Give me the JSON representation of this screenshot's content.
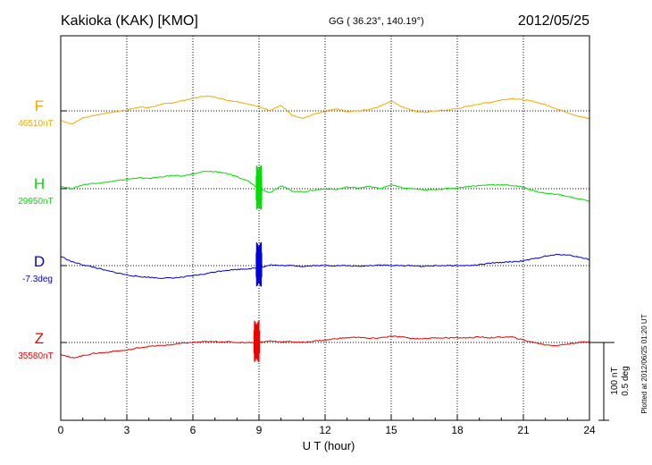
{
  "header": {
    "station": "Kakioka (KAK)  [KMO]",
    "coords": "GG ( 36.23°, 140.19°)",
    "date": "2012/05/25"
  },
  "chart_data": {
    "type": "line",
    "xlabel": "U T (hour)",
    "xlim": [
      0,
      24
    ],
    "xticks": [
      "0",
      "3",
      "6",
      "9",
      "12",
      "15",
      "18",
      "21",
      "24"
    ],
    "grid": true,
    "scale_bar": {
      "nt_label": "100 nT",
      "deg_label": "0.5 deg",
      "nt_value": 100,
      "deg_value": 0.5
    },
    "plotted_note": "Plotted at 2012/06/25 01:20 UT",
    "colors": {
      "F": "#f5a800",
      "H": "#00dd00",
      "D": "#0000dd",
      "Z": "#ee0000"
    },
    "series": [
      {
        "name": "F",
        "baseline_label": "46510nT",
        "unit": "nT",
        "x": [
          0,
          0.5,
          1,
          1.5,
          2,
          2.5,
          3,
          3.5,
          4,
          4.5,
          5,
          5.5,
          6,
          6.5,
          7,
          7.5,
          8,
          8.5,
          9,
          9.5,
          10,
          10.5,
          11,
          11.5,
          12,
          12.5,
          13,
          13.5,
          14,
          14.5,
          15,
          15.5,
          16,
          16.5,
          17,
          17.5,
          18,
          18.5,
          19,
          19.5,
          20,
          20.5,
          21,
          21.5,
          22,
          22.5,
          23,
          23.5,
          24
        ],
        "values": [
          -12,
          -17,
          -9,
          -6,
          -3,
          -1,
          1,
          5,
          4,
          8,
          10,
          13,
          16,
          19,
          18,
          14,
          12,
          9,
          5,
          1,
          7,
          -6,
          -10,
          -4,
          -1,
          3,
          -1,
          0,
          2,
          6,
          13,
          5,
          0,
          -2,
          0,
          1,
          3,
          6,
          9,
          11,
          14,
          16,
          14,
          12,
          8,
          3,
          -2,
          -7,
          -10
        ]
      },
      {
        "name": "H",
        "baseline_label": "29950nT",
        "unit": "nT",
        "x": [
          0,
          0.5,
          1,
          1.5,
          2,
          2.5,
          3,
          3.5,
          4,
          4.5,
          5,
          5.5,
          6,
          6.5,
          7,
          7.5,
          8,
          8.5,
          9,
          9.5,
          10,
          10.5,
          11,
          11.5,
          12,
          12.5,
          13,
          13.5,
          14,
          14.5,
          15,
          15.5,
          16,
          16.5,
          17,
          17.5,
          18,
          18.5,
          19,
          19.5,
          20,
          20.5,
          21,
          21.5,
          22,
          22.5,
          23,
          23.5,
          24
        ],
        "values": [
          3,
          0,
          5,
          7,
          8,
          10,
          12,
          14,
          13,
          15,
          17,
          16,
          19,
          22,
          22,
          20,
          15,
          10,
          0,
          -5,
          4,
          -3,
          -4,
          -2,
          0,
          -1,
          2,
          1,
          3,
          0,
          5,
          1,
          0,
          -2,
          -1,
          0,
          1,
          3,
          4,
          5,
          5,
          4,
          2,
          -3,
          -6,
          -7,
          -10,
          -13,
          -16
        ],
        "disturbance": {
          "x": 9.0,
          "amplitude": 30
        }
      },
      {
        "name": "D",
        "baseline_label": "-7.3deg",
        "unit": "deg",
        "x": [
          0,
          0.5,
          1,
          1.5,
          2,
          2.5,
          3,
          3.5,
          4,
          4.5,
          5,
          5.5,
          6,
          6.5,
          7,
          7.5,
          8,
          8.5,
          9,
          9.5,
          10,
          10.5,
          11,
          11.5,
          12,
          12.5,
          13,
          13.5,
          14,
          14.5,
          15,
          15.5,
          16,
          16.5,
          17,
          17.5,
          18,
          18.5,
          19,
          19.5,
          20,
          20.5,
          21,
          21.5,
          22,
          22.5,
          23,
          23.5,
          24
        ],
        "values": [
          12,
          5,
          1,
          -2,
          -6,
          -9,
          -12,
          -14,
          -15,
          -16,
          -16,
          -15,
          -13,
          -11,
          -8,
          -6,
          -5,
          -4,
          -3,
          1,
          0,
          0,
          -1,
          0,
          0,
          0,
          0,
          -1,
          0,
          1,
          0,
          0,
          0,
          -1,
          0,
          0,
          0,
          0,
          1,
          3,
          4,
          5,
          6,
          9,
          12,
          14,
          14,
          11,
          8
        ],
        "disturbance": {
          "x": 9.0,
          "amplitude": 30
        }
      },
      {
        "name": "Z",
        "baseline_label": "35580nT",
        "unit": "nT",
        "x": [
          0,
          0.5,
          1,
          1.5,
          2,
          2.5,
          3,
          3.5,
          4,
          4.5,
          5,
          5.5,
          6,
          6.5,
          7,
          7.5,
          8,
          8.5,
          9,
          9.5,
          10,
          10.5,
          11,
          11.5,
          12,
          12.5,
          13,
          13.5,
          14,
          14.5,
          15,
          15.5,
          16,
          16.5,
          17,
          17.5,
          18,
          18.5,
          19,
          19.5,
          20,
          20.5,
          21,
          21.5,
          22,
          22.5,
          23,
          23.5,
          24
        ],
        "values": [
          -15,
          -20,
          -17,
          -14,
          -13,
          -11,
          -10,
          -7,
          -5,
          -4,
          -3,
          -1,
          0,
          1,
          1,
          1,
          0,
          0,
          0,
          2,
          1,
          1,
          0,
          2,
          3,
          5,
          6,
          7,
          5,
          6,
          8,
          7,
          5,
          5,
          6,
          6,
          6,
          6,
          7,
          6,
          7,
          7,
          3,
          0,
          -3,
          -4,
          -2,
          0,
          1
        ],
        "disturbance": {
          "x": 8.9,
          "amplitude": 28
        }
      }
    ]
  }
}
